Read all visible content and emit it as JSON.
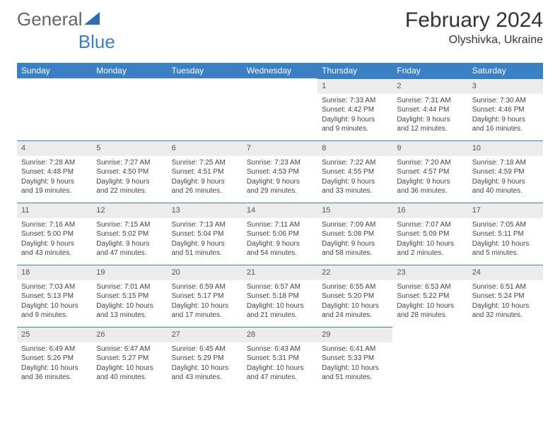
{
  "brand": {
    "part1": "General",
    "part2": "Blue"
  },
  "title": "February 2024",
  "location": "Olyshivka, Ukraine",
  "colors": {
    "header_bg": "#3b7fc4",
    "header_text": "#ffffff",
    "daynum_bg": "#ececec",
    "border": "#3b7fc4",
    "body_text": "#444444"
  },
  "weekdays": [
    "Sunday",
    "Monday",
    "Tuesday",
    "Wednesday",
    "Thursday",
    "Friday",
    "Saturday"
  ],
  "weeks": [
    [
      null,
      null,
      null,
      null,
      {
        "n": "1",
        "sr": "7:33 AM",
        "ss": "4:42 PM",
        "dl": "9 hours and 9 minutes."
      },
      {
        "n": "2",
        "sr": "7:31 AM",
        "ss": "4:44 PM",
        "dl": "9 hours and 12 minutes."
      },
      {
        "n": "3",
        "sr": "7:30 AM",
        "ss": "4:46 PM",
        "dl": "9 hours and 16 minutes."
      }
    ],
    [
      {
        "n": "4",
        "sr": "7:28 AM",
        "ss": "4:48 PM",
        "dl": "9 hours and 19 minutes."
      },
      {
        "n": "5",
        "sr": "7:27 AM",
        "ss": "4:50 PM",
        "dl": "9 hours and 22 minutes."
      },
      {
        "n": "6",
        "sr": "7:25 AM",
        "ss": "4:51 PM",
        "dl": "9 hours and 26 minutes."
      },
      {
        "n": "7",
        "sr": "7:23 AM",
        "ss": "4:53 PM",
        "dl": "9 hours and 29 minutes."
      },
      {
        "n": "8",
        "sr": "7:22 AM",
        "ss": "4:55 PM",
        "dl": "9 hours and 33 minutes."
      },
      {
        "n": "9",
        "sr": "7:20 AM",
        "ss": "4:57 PM",
        "dl": "9 hours and 36 minutes."
      },
      {
        "n": "10",
        "sr": "7:18 AM",
        "ss": "4:59 PM",
        "dl": "9 hours and 40 minutes."
      }
    ],
    [
      {
        "n": "11",
        "sr": "7:16 AM",
        "ss": "5:00 PM",
        "dl": "9 hours and 43 minutes."
      },
      {
        "n": "12",
        "sr": "7:15 AM",
        "ss": "5:02 PM",
        "dl": "9 hours and 47 minutes."
      },
      {
        "n": "13",
        "sr": "7:13 AM",
        "ss": "5:04 PM",
        "dl": "9 hours and 51 minutes."
      },
      {
        "n": "14",
        "sr": "7:11 AM",
        "ss": "5:06 PM",
        "dl": "9 hours and 54 minutes."
      },
      {
        "n": "15",
        "sr": "7:09 AM",
        "ss": "5:08 PM",
        "dl": "9 hours and 58 minutes."
      },
      {
        "n": "16",
        "sr": "7:07 AM",
        "ss": "5:09 PM",
        "dl": "10 hours and 2 minutes."
      },
      {
        "n": "17",
        "sr": "7:05 AM",
        "ss": "5:11 PM",
        "dl": "10 hours and 5 minutes."
      }
    ],
    [
      {
        "n": "18",
        "sr": "7:03 AM",
        "ss": "5:13 PM",
        "dl": "10 hours and 9 minutes."
      },
      {
        "n": "19",
        "sr": "7:01 AM",
        "ss": "5:15 PM",
        "dl": "10 hours and 13 minutes."
      },
      {
        "n": "20",
        "sr": "6:59 AM",
        "ss": "5:17 PM",
        "dl": "10 hours and 17 minutes."
      },
      {
        "n": "21",
        "sr": "6:57 AM",
        "ss": "5:18 PM",
        "dl": "10 hours and 21 minutes."
      },
      {
        "n": "22",
        "sr": "6:55 AM",
        "ss": "5:20 PM",
        "dl": "10 hours and 24 minutes."
      },
      {
        "n": "23",
        "sr": "6:53 AM",
        "ss": "5:22 PM",
        "dl": "10 hours and 28 minutes."
      },
      {
        "n": "24",
        "sr": "6:51 AM",
        "ss": "5:24 PM",
        "dl": "10 hours and 32 minutes."
      }
    ],
    [
      {
        "n": "25",
        "sr": "6:49 AM",
        "ss": "5:26 PM",
        "dl": "10 hours and 36 minutes."
      },
      {
        "n": "26",
        "sr": "6:47 AM",
        "ss": "5:27 PM",
        "dl": "10 hours and 40 minutes."
      },
      {
        "n": "27",
        "sr": "6:45 AM",
        "ss": "5:29 PM",
        "dl": "10 hours and 43 minutes."
      },
      {
        "n": "28",
        "sr": "6:43 AM",
        "ss": "5:31 PM",
        "dl": "10 hours and 47 minutes."
      },
      {
        "n": "29",
        "sr": "6:41 AM",
        "ss": "5:33 PM",
        "dl": "10 hours and 51 minutes."
      },
      null,
      null
    ]
  ],
  "labels": {
    "sunrise": "Sunrise:",
    "sunset": "Sunset:",
    "daylight": "Daylight:"
  }
}
